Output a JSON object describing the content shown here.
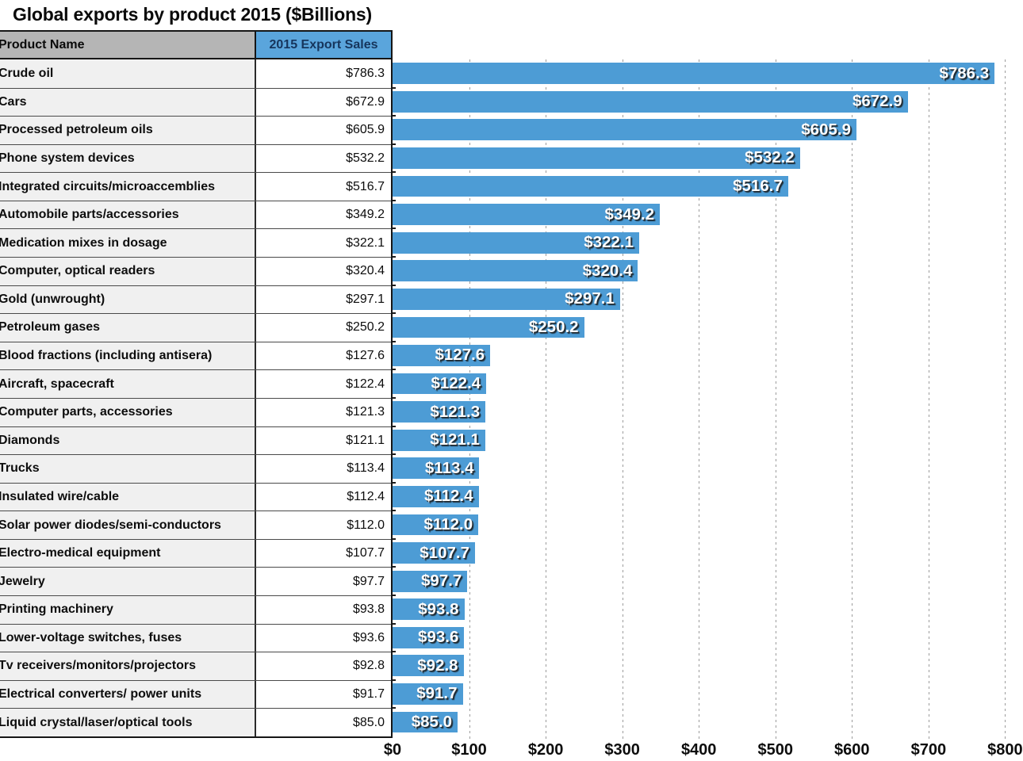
{
  "chart_data": {
    "type": "bar",
    "orientation": "horizontal",
    "title": "Global exports by product 2015 ($Billions)",
    "categories": [
      "Crude oil",
      "Cars",
      "Processed petroleum oils",
      "Phone system devices",
      "Integrated circuits/microaccemblies",
      "Automobile parts/accessories",
      "Medication mixes in dosage",
      "Computer, optical readers",
      "Gold (unwrought)",
      "Petroleum gases",
      "Blood fractions (including antisera)",
      "Aircraft, spacecraft",
      "Computer parts, accessories",
      "Diamonds",
      "Trucks",
      "Insulated wire/cable",
      "Solar power diodes/semi-conductors",
      "Electro-medical equipment",
      "Jewelry",
      "Printing machinery",
      "Lower-voltage switches, fuses",
      "Tv receivers/monitors/projectors",
      "Electrical converters/ power units",
      "Liquid crystal/laser/optical tools"
    ],
    "values": [
      786.3,
      672.9,
      605.9,
      532.2,
      516.7,
      349.2,
      322.1,
      320.4,
      297.1,
      250.2,
      127.6,
      122.4,
      121.3,
      121.1,
      113.4,
      112.4,
      112.0,
      107.7,
      97.7,
      93.8,
      93.6,
      92.8,
      91.7,
      85.0
    ],
    "value_labels": [
      "$786.3",
      "$672.9",
      "$605.9",
      "$532.2",
      "$516.7",
      "$349.2",
      "$322.1",
      "$320.4",
      "$297.1",
      "$250.2",
      "$127.6",
      "$122.4",
      "$121.3",
      "$121.1",
      "$113.4",
      "$112.4",
      "$112.0",
      "$107.7",
      "$97.7",
      "$93.8",
      "$93.6",
      "$92.8",
      "$91.7",
      "$85.0"
    ],
    "xlim": [
      0,
      800
    ],
    "x_tick_values": [
      0,
      100,
      200,
      300,
      400,
      500,
      600,
      700,
      800
    ],
    "x_tick_labels": [
      "$0",
      "$100",
      "$200",
      "$300",
      "$400",
      "$500",
      "$600",
      "$700",
      "$800"
    ],
    "grid": "dashed vertical gridlines every $100",
    "legend": "none",
    "bar_label_position": "inside-end"
  },
  "table": {
    "columns": [
      "Product Name",
      "2015 Export Sales"
    ]
  },
  "colors": {
    "bar": "#4D9CD5",
    "blue_header_bg": "#5AA5DC",
    "blue_header_text": "#16355C",
    "gray_header_bg": "#B5B5B5",
    "row_bg": "#F0F0F0",
    "gridline": "#9C9C9C"
  }
}
